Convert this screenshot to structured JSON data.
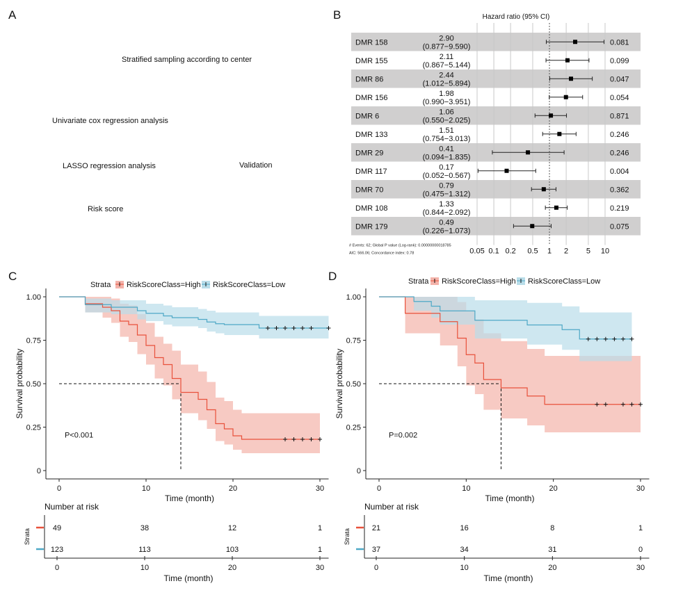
{
  "panels": {
    "a": {
      "letter": "A",
      "steps": [
        {
          "label": "Stratified sampling according to center"
        },
        {
          "label": "Univariate cox regression analysis"
        },
        {
          "label": "LASSO regression analysis"
        },
        {
          "label": "Validation"
        },
        {
          "label": "Risk score"
        }
      ]
    },
    "b": {
      "letter": "B"
    },
    "c": {
      "letter": "C"
    },
    "d": {
      "letter": "D"
    }
  },
  "chart_data": [
    {
      "type": "forest",
      "panel": "B",
      "title": "Hazard ratio (95% CI)",
      "xscale": "log",
      "xticks": [
        0.05,
        0.1,
        0.2,
        0.5,
        1,
        2,
        5,
        10
      ],
      "xtick_labels": [
        "0.05",
        "0.1",
        "0.2",
        "0.5",
        "1",
        "2",
        "5",
        "10"
      ],
      "reference_line": 1,
      "rows": [
        {
          "label": "DMR 158",
          "hr": 2.9,
          "lo": 0.877,
          "hi": 9.59,
          "hr_text": "2.90",
          "ci_text": "(0.877−9.590)",
          "p": "0.081",
          "shaded": true
        },
        {
          "label": "DMR 155",
          "hr": 2.11,
          "lo": 0.867,
          "hi": 5.144,
          "hr_text": "2.11",
          "ci_text": "(0.867−5.144)",
          "p": "0.099",
          "shaded": false
        },
        {
          "label": "DMR 86",
          "hr": 2.44,
          "lo": 1.012,
          "hi": 5.894,
          "hr_text": "2.44",
          "ci_text": "(1.012−5.894)",
          "p": "0.047",
          "shaded": true
        },
        {
          "label": "DMR 156",
          "hr": 1.98,
          "lo": 0.99,
          "hi": 3.951,
          "hr_text": "1.98",
          "ci_text": "(0.990−3.951)",
          "p": "0.054",
          "shaded": false
        },
        {
          "label": "DMR 6",
          "hr": 1.06,
          "lo": 0.55,
          "hi": 2.025,
          "hr_text": "1.06",
          "ci_text": "(0.550−2.025)",
          "p": "0.871",
          "shaded": true
        },
        {
          "label": "DMR 133",
          "hr": 1.51,
          "lo": 0.754,
          "hi": 3.013,
          "hr_text": "1.51",
          "ci_text": "(0.754−3.013)",
          "p": "0.246",
          "shaded": false
        },
        {
          "label": "DMR 29",
          "hr": 0.41,
          "lo": 0.094,
          "hi": 1.835,
          "hr_text": "0.41",
          "ci_text": "(0.094−1.835)",
          "p": "0.246",
          "shaded": true
        },
        {
          "label": "DMR 117",
          "hr": 0.17,
          "lo": 0.052,
          "hi": 0.567,
          "hr_text": "0.17",
          "ci_text": "(0.052−0.567)",
          "p": "0.004",
          "shaded": false
        },
        {
          "label": "DMR 70",
          "hr": 0.79,
          "lo": 0.475,
          "hi": 1.312,
          "hr_text": "0.79",
          "ci_text": "(0.475−1.312)",
          "p": "0.362",
          "shaded": true
        },
        {
          "label": "DMR 108",
          "hr": 1.33,
          "lo": 0.844,
          "hi": 2.092,
          "hr_text": "1.33",
          "ci_text": "(0.844−2.092)",
          "p": "0.219",
          "shaded": false
        },
        {
          "label": "DMR 179",
          "hr": 0.49,
          "lo": 0.226,
          "hi": 1.073,
          "hr_text": "0.49",
          "ci_text": "(0.226−1.073)",
          "p": "0.075",
          "shaded": true
        }
      ],
      "footnotes": [
        "# Events: 62; Global P value (Log-rank): 0.00000000018785",
        "AIC: 566.06; Concordance index: 0.78"
      ],
      "colors": {
        "shade": "#d0cfcf",
        "grid": "#c8c8c8",
        "mark": "#000000"
      }
    },
    {
      "type": "line",
      "subtype": "kaplan-meier",
      "panel": "C",
      "legend_title": "Strata",
      "legend_position": "top",
      "xlabel": "Time (month)",
      "ylabel": "Survival probability",
      "xlim": [
        0,
        31
      ],
      "ylim": [
        0,
        1
      ],
      "xticks": [
        0,
        10,
        20,
        30
      ],
      "yticks": [
        0,
        0.25,
        0.5,
        0.75,
        1.0
      ],
      "ytick_labels": [
        "0",
        "0.25",
        "0.50",
        "0.75",
        "1.00"
      ],
      "pvalue_text": "P<0.001",
      "median_line": {
        "y": 0.5,
        "x": 14
      },
      "series": [
        {
          "name": "RiskScoreClass=High",
          "color": "#e8513b",
          "band_color": "#f4b3aa",
          "x": [
            0,
            3,
            5,
            6,
            7,
            8,
            9,
            10,
            11,
            12,
            13,
            14,
            16,
            17,
            18,
            19,
            20,
            21,
            30
          ],
          "y": [
            1.0,
            0.96,
            0.94,
            0.92,
            0.86,
            0.84,
            0.78,
            0.72,
            0.65,
            0.61,
            0.53,
            0.45,
            0.41,
            0.35,
            0.27,
            0.24,
            0.2,
            0.18,
            0.18
          ],
          "lower": [
            1.0,
            0.91,
            0.88,
            0.85,
            0.77,
            0.74,
            0.67,
            0.61,
            0.53,
            0.49,
            0.41,
            0.33,
            0.29,
            0.24,
            0.17,
            0.15,
            0.12,
            0.1,
            0.1
          ],
          "upper": [
            1.0,
            1.0,
            1.0,
            0.99,
            0.96,
            0.95,
            0.9,
            0.85,
            0.77,
            0.73,
            0.69,
            0.61,
            0.57,
            0.51,
            0.42,
            0.4,
            0.35,
            0.33,
            0.33
          ],
          "censor_x": [
            26,
            27,
            28,
            29,
            30
          ]
        },
        {
          "name": "RiskScoreClass=Low",
          "color": "#4ea8c6",
          "band_color": "#b9dde9",
          "x": [
            0,
            3,
            6,
            9,
            10,
            12,
            13,
            16,
            17,
            18,
            19,
            23,
            31
          ],
          "y": [
            1.0,
            0.955,
            0.94,
            0.92,
            0.905,
            0.89,
            0.88,
            0.87,
            0.855,
            0.845,
            0.84,
            0.82,
            0.82
          ],
          "lower": [
            1.0,
            0.91,
            0.9,
            0.87,
            0.86,
            0.84,
            0.83,
            0.82,
            0.8,
            0.79,
            0.78,
            0.76,
            0.76
          ],
          "upper": [
            1.0,
            0.99,
            0.98,
            0.98,
            0.96,
            0.95,
            0.94,
            0.93,
            0.92,
            0.91,
            0.91,
            0.89,
            0.89
          ],
          "censor_x": [
            24,
            25,
            26,
            27,
            28,
            29,
            31
          ]
        }
      ],
      "risk_table": {
        "title": "Number at risk",
        "ylabel": "Strata",
        "xlabel": "Time (month)",
        "times": [
          0,
          10,
          20,
          30
        ],
        "rows": [
          {
            "name": "RiskScoreClass=High",
            "color": "#e8513b",
            "counts": [
              "49",
              "38",
              "12",
              "1"
            ]
          },
          {
            "name": "RiskScoreClass=Low",
            "color": "#4ea8c6",
            "counts": [
              "123",
              "113",
              "103",
              "1"
            ]
          }
        ]
      }
    },
    {
      "type": "line",
      "subtype": "kaplan-meier",
      "panel": "D",
      "legend_title": "Strata",
      "legend_position": "top",
      "xlabel": "Time (month)",
      "ylabel": "Survival probability",
      "xlim": [
        0,
        31
      ],
      "ylim": [
        0,
        1
      ],
      "xticks": [
        0,
        10,
        20,
        30
      ],
      "yticks": [
        0,
        0.25,
        0.5,
        0.75,
        1.0
      ],
      "ytick_labels": [
        "0",
        "0.25",
        "0.50",
        "0.75",
        "1.00"
      ],
      "pvalue_text": "P=0.002",
      "median_line": {
        "y": 0.5,
        "x": 14
      },
      "series": [
        {
          "name": "RiskScoreClass=High",
          "color": "#e8513b",
          "band_color": "#f4b3aa",
          "x": [
            0,
            3,
            7,
            9,
            10,
            11,
            12,
            14,
            17,
            19,
            30
          ],
          "y": [
            1.0,
            0.905,
            0.857,
            0.762,
            0.667,
            0.619,
            0.524,
            0.476,
            0.429,
            0.381,
            0.381
          ],
          "lower": [
            1.0,
            0.79,
            0.72,
            0.6,
            0.49,
            0.44,
            0.35,
            0.3,
            0.26,
            0.22,
            0.22
          ],
          "upper": [
            1.0,
            1.0,
            1.0,
            0.97,
            0.92,
            0.87,
            0.79,
            0.745,
            0.7,
            0.66,
            0.66
          ],
          "censor_x": [
            25,
            26,
            28,
            29,
            30
          ]
        },
        {
          "name": "RiskScoreClass=Low",
          "color": "#4ea8c6",
          "band_color": "#b9dde9",
          "x": [
            0,
            4,
            6,
            7,
            11,
            17,
            21,
            23,
            29
          ],
          "y": [
            1.0,
            0.973,
            0.946,
            0.919,
            0.865,
            0.838,
            0.811,
            0.757,
            0.757
          ],
          "lower": [
            1.0,
            0.92,
            0.88,
            0.84,
            0.76,
            0.725,
            0.695,
            0.63,
            0.63
          ],
          "upper": [
            1.0,
            1.0,
            1.0,
            1.0,
            0.98,
            0.965,
            0.945,
            0.91,
            0.91
          ],
          "censor_x": [
            24,
            25,
            26,
            27,
            28,
            29
          ]
        }
      ],
      "risk_table": {
        "title": "Number at risk",
        "ylabel": "Strata",
        "xlabel": "Time (month)",
        "times": [
          0,
          10,
          20,
          30
        ],
        "rows": [
          {
            "name": "RiskScoreClass=High",
            "color": "#e8513b",
            "counts": [
              "21",
              "16",
              "8",
              "1"
            ]
          },
          {
            "name": "RiskScoreClass=Low",
            "color": "#4ea8c6",
            "counts": [
              "37",
              "34",
              "31",
              "0"
            ]
          }
        ]
      }
    }
  ]
}
